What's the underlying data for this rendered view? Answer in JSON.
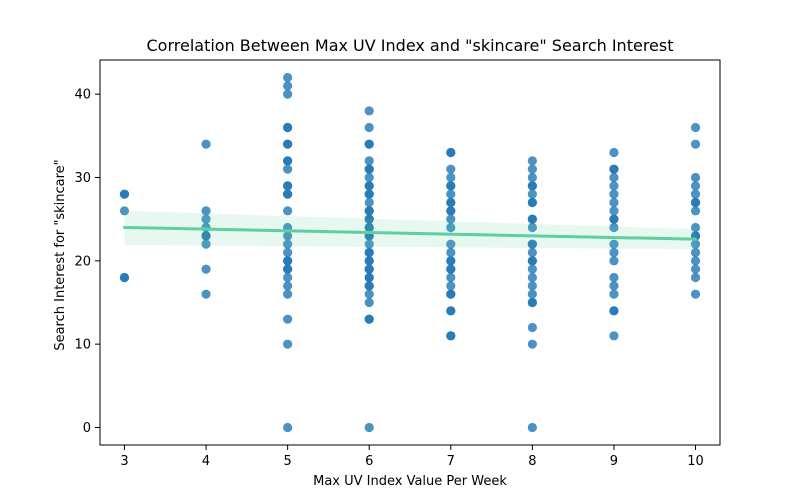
{
  "chart_data": {
    "type": "scatter",
    "title": "Correlation Between Max UV Index and \"skincare\" Search Interest",
    "xlabel": "Max UV Index Value Per Week",
    "ylabel": "Search Interest for \"skincare\"",
    "xlim": [
      2.7,
      10.3
    ],
    "ylim": [
      -2.1,
      44.1
    ],
    "x_ticks": [
      3,
      4,
      5,
      6,
      7,
      8,
      9,
      10
    ],
    "y_ticks": [
      0,
      10,
      20,
      30,
      40
    ],
    "grid": false,
    "colors": {
      "points": "#1f77b4",
      "regression_line": "#5ecfa0",
      "confidence_band": "#5ecfa0"
    },
    "regression": {
      "x": [
        3,
        10
      ],
      "y": [
        24.0,
        22.6
      ],
      "ci_lower": [
        21.9,
        21.4
      ],
      "ci_upper": [
        26.0,
        23.8
      ]
    },
    "points": [
      {
        "x": 3,
        "y": 28
      },
      {
        "x": 3,
        "y": 28
      },
      {
        "x": 3,
        "y": 26
      },
      {
        "x": 3,
        "y": 18
      },
      {
        "x": 3,
        "y": 18
      },
      {
        "x": 4,
        "y": 34
      },
      {
        "x": 4,
        "y": 26
      },
      {
        "x": 4,
        "y": 25
      },
      {
        "x": 4,
        "y": 24
      },
      {
        "x": 4,
        "y": 23
      },
      {
        "x": 4,
        "y": 23
      },
      {
        "x": 4,
        "y": 22
      },
      {
        "x": 4,
        "y": 19
      },
      {
        "x": 4,
        "y": 16
      },
      {
        "x": 5,
        "y": 42
      },
      {
        "x": 5,
        "y": 41
      },
      {
        "x": 5,
        "y": 40
      },
      {
        "x": 5,
        "y": 36
      },
      {
        "x": 5,
        "y": 36
      },
      {
        "x": 5,
        "y": 34
      },
      {
        "x": 5,
        "y": 34
      },
      {
        "x": 5,
        "y": 32
      },
      {
        "x": 5,
        "y": 32
      },
      {
        "x": 5,
        "y": 31
      },
      {
        "x": 5,
        "y": 29
      },
      {
        "x": 5,
        "y": 29
      },
      {
        "x": 5,
        "y": 28
      },
      {
        "x": 5,
        "y": 28
      },
      {
        "x": 5,
        "y": 26
      },
      {
        "x": 5,
        "y": 24
      },
      {
        "x": 5,
        "y": 23
      },
      {
        "x": 5,
        "y": 22
      },
      {
        "x": 5,
        "y": 21
      },
      {
        "x": 5,
        "y": 20
      },
      {
        "x": 5,
        "y": 20
      },
      {
        "x": 5,
        "y": 19
      },
      {
        "x": 5,
        "y": 19
      },
      {
        "x": 5,
        "y": 18
      },
      {
        "x": 5,
        "y": 17
      },
      {
        "x": 5,
        "y": 16
      },
      {
        "x": 5,
        "y": 13
      },
      {
        "x": 5,
        "y": 10
      },
      {
        "x": 5,
        "y": 0
      },
      {
        "x": 6,
        "y": 38
      },
      {
        "x": 6,
        "y": 36
      },
      {
        "x": 6,
        "y": 34
      },
      {
        "x": 6,
        "y": 34
      },
      {
        "x": 6,
        "y": 32
      },
      {
        "x": 6,
        "y": 31
      },
      {
        "x": 6,
        "y": 31
      },
      {
        "x": 6,
        "y": 30
      },
      {
        "x": 6,
        "y": 29
      },
      {
        "x": 6,
        "y": 29
      },
      {
        "x": 6,
        "y": 28
      },
      {
        "x": 6,
        "y": 28
      },
      {
        "x": 6,
        "y": 27
      },
      {
        "x": 6,
        "y": 26
      },
      {
        "x": 6,
        "y": 26
      },
      {
        "x": 6,
        "y": 25
      },
      {
        "x": 6,
        "y": 25
      },
      {
        "x": 6,
        "y": 24
      },
      {
        "x": 6,
        "y": 24
      },
      {
        "x": 6,
        "y": 23
      },
      {
        "x": 6,
        "y": 23
      },
      {
        "x": 6,
        "y": 22
      },
      {
        "x": 6,
        "y": 21
      },
      {
        "x": 6,
        "y": 21
      },
      {
        "x": 6,
        "y": 20
      },
      {
        "x": 6,
        "y": 20
      },
      {
        "x": 6,
        "y": 19
      },
      {
        "x": 6,
        "y": 19
      },
      {
        "x": 6,
        "y": 18
      },
      {
        "x": 6,
        "y": 18
      },
      {
        "x": 6,
        "y": 17
      },
      {
        "x": 6,
        "y": 17
      },
      {
        "x": 6,
        "y": 16
      },
      {
        "x": 6,
        "y": 15
      },
      {
        "x": 6,
        "y": 13
      },
      {
        "x": 6,
        "y": 13
      },
      {
        "x": 6,
        "y": 0
      },
      {
        "x": 7,
        "y": 33
      },
      {
        "x": 7,
        "y": 33
      },
      {
        "x": 7,
        "y": 31
      },
      {
        "x": 7,
        "y": 30
      },
      {
        "x": 7,
        "y": 29
      },
      {
        "x": 7,
        "y": 29
      },
      {
        "x": 7,
        "y": 28
      },
      {
        "x": 7,
        "y": 27
      },
      {
        "x": 7,
        "y": 27
      },
      {
        "x": 7,
        "y": 26
      },
      {
        "x": 7,
        "y": 26
      },
      {
        "x": 7,
        "y": 25
      },
      {
        "x": 7,
        "y": 24
      },
      {
        "x": 7,
        "y": 22
      },
      {
        "x": 7,
        "y": 21
      },
      {
        "x": 7,
        "y": 20
      },
      {
        "x": 7,
        "y": 20
      },
      {
        "x": 7,
        "y": 19
      },
      {
        "x": 7,
        "y": 19
      },
      {
        "x": 7,
        "y": 18
      },
      {
        "x": 7,
        "y": 17
      },
      {
        "x": 7,
        "y": 16
      },
      {
        "x": 7,
        "y": 16
      },
      {
        "x": 7,
        "y": 14
      },
      {
        "x": 7,
        "y": 14
      },
      {
        "x": 7,
        "y": 11
      },
      {
        "x": 7,
        "y": 11
      },
      {
        "x": 8,
        "y": 32
      },
      {
        "x": 8,
        "y": 31
      },
      {
        "x": 8,
        "y": 30
      },
      {
        "x": 8,
        "y": 29
      },
      {
        "x": 8,
        "y": 29
      },
      {
        "x": 8,
        "y": 28
      },
      {
        "x": 8,
        "y": 27
      },
      {
        "x": 8,
        "y": 27
      },
      {
        "x": 8,
        "y": 25
      },
      {
        "x": 8,
        "y": 25
      },
      {
        "x": 8,
        "y": 24
      },
      {
        "x": 8,
        "y": 22
      },
      {
        "x": 8,
        "y": 22
      },
      {
        "x": 8,
        "y": 21
      },
      {
        "x": 8,
        "y": 20
      },
      {
        "x": 8,
        "y": 20
      },
      {
        "x": 8,
        "y": 19
      },
      {
        "x": 8,
        "y": 18
      },
      {
        "x": 8,
        "y": 17
      },
      {
        "x": 8,
        "y": 16
      },
      {
        "x": 8,
        "y": 15
      },
      {
        "x": 8,
        "y": 15
      },
      {
        "x": 8,
        "y": 12
      },
      {
        "x": 8,
        "y": 10
      },
      {
        "x": 8,
        "y": 0
      },
      {
        "x": 9,
        "y": 33
      },
      {
        "x": 9,
        "y": 31
      },
      {
        "x": 9,
        "y": 31
      },
      {
        "x": 9,
        "y": 30
      },
      {
        "x": 9,
        "y": 29
      },
      {
        "x": 9,
        "y": 28
      },
      {
        "x": 9,
        "y": 27
      },
      {
        "x": 9,
        "y": 26
      },
      {
        "x": 9,
        "y": 25
      },
      {
        "x": 9,
        "y": 25
      },
      {
        "x": 9,
        "y": 24
      },
      {
        "x": 9,
        "y": 22
      },
      {
        "x": 9,
        "y": 21
      },
      {
        "x": 9,
        "y": 20
      },
      {
        "x": 9,
        "y": 18
      },
      {
        "x": 9,
        "y": 17
      },
      {
        "x": 9,
        "y": 16
      },
      {
        "x": 9,
        "y": 14
      },
      {
        "x": 9,
        "y": 14
      },
      {
        "x": 9,
        "y": 11
      },
      {
        "x": 10,
        "y": 36
      },
      {
        "x": 10,
        "y": 34
      },
      {
        "x": 10,
        "y": 30
      },
      {
        "x": 10,
        "y": 29
      },
      {
        "x": 10,
        "y": 28
      },
      {
        "x": 10,
        "y": 27
      },
      {
        "x": 10,
        "y": 27
      },
      {
        "x": 10,
        "y": 26
      },
      {
        "x": 10,
        "y": 24
      },
      {
        "x": 10,
        "y": 23
      },
      {
        "x": 10,
        "y": 23
      },
      {
        "x": 10,
        "y": 22
      },
      {
        "x": 10,
        "y": 21
      },
      {
        "x": 10,
        "y": 20
      },
      {
        "x": 10,
        "y": 19
      },
      {
        "x": 10,
        "y": 18
      },
      {
        "x": 10,
        "y": 16
      }
    ]
  }
}
